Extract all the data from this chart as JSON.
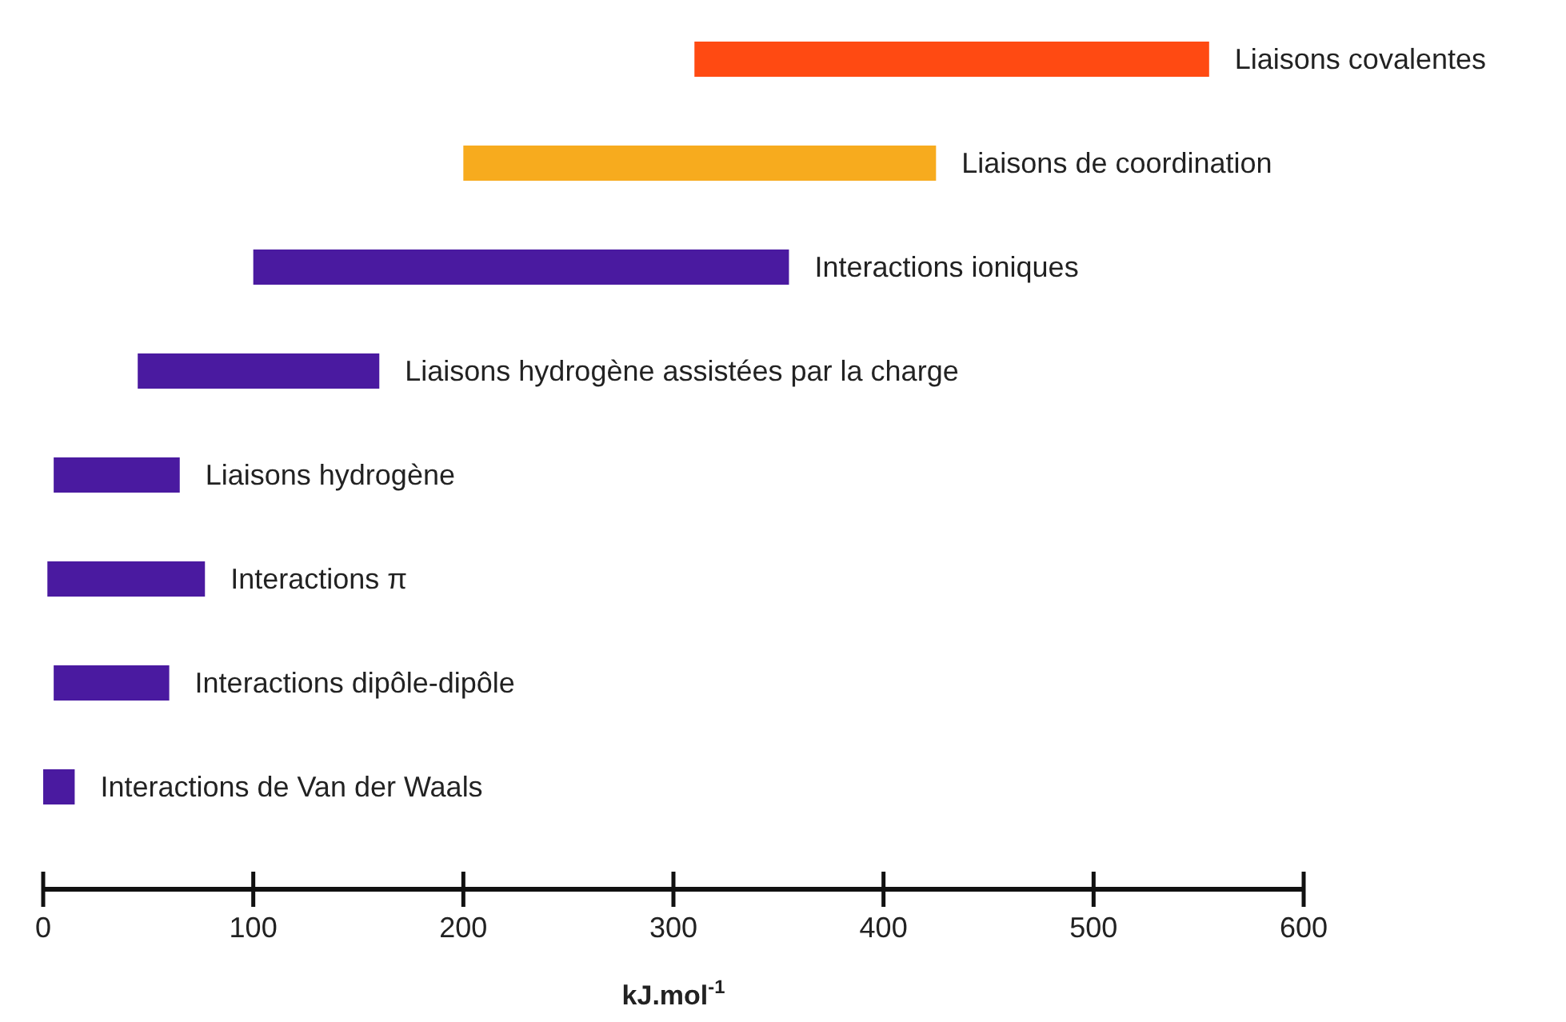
{
  "chart_data": {
    "type": "bar",
    "orientation": "horizontal",
    "categories": [
      "Liaisons covalentes",
      "Liaisons de coordination",
      "Interactions ioniques",
      "Liaisons hydrogène assistées par la charge",
      "Liaisons hydrogène",
      "Interactions π",
      "Interactions dipôle-dipôle",
      "Interactions de Van der Waals"
    ],
    "base": [
      310,
      200,
      100,
      45,
      5,
      2,
      5,
      0
    ],
    "values": [
      245,
      225,
      255,
      115,
      60,
      75,
      55,
      15
    ],
    "colors": [
      "#ff4a12",
      "#f7ab1e",
      "#4a1aa0",
      "#4a1aa0",
      "#4a1aa0",
      "#4a1aa0",
      "#4a1aa0",
      "#4a1aa0"
    ],
    "xlim": [
      0,
      600
    ],
    "xticks": [
      0,
      100,
      200,
      300,
      400,
      500,
      600
    ],
    "xlabel": "kJ.mol$^{-1}$",
    "grid": false
  }
}
